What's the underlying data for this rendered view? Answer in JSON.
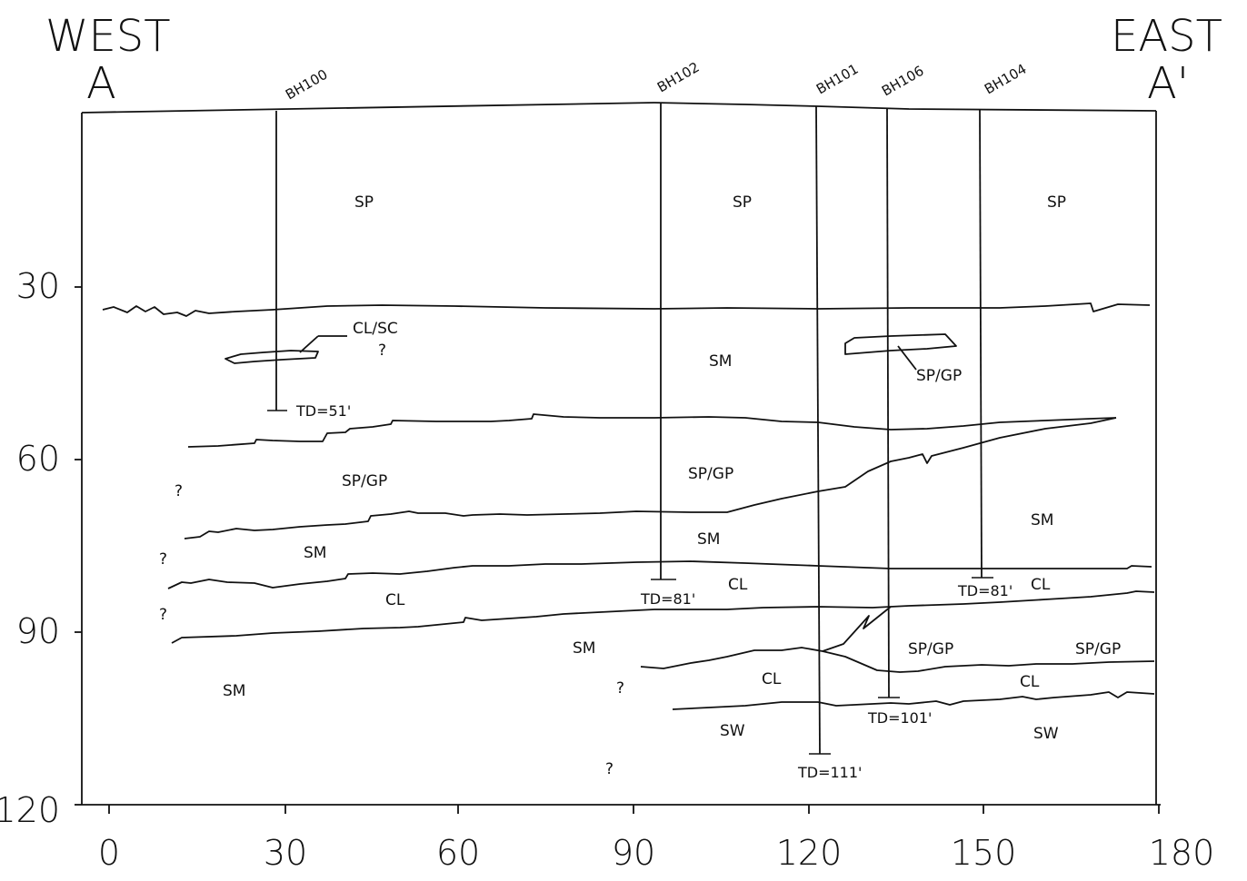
{
  "header": {
    "west": "WEST",
    "east": "EAST",
    "a_left": "A",
    "a_right": "A'"
  },
  "boreholes": [
    {
      "id": "BH100",
      "td_label": "TD=51'"
    },
    {
      "id": "BH102",
      "td_label": "TD=81'"
    },
    {
      "id": "BH101",
      "td_label": "TD=111'"
    },
    {
      "id": "BH106",
      "td_label": "TD=101'"
    },
    {
      "id": "BH104",
      "td_label": "TD=81'"
    }
  ],
  "axes": {
    "x_ticks": [
      "0",
      "30",
      "60",
      "90",
      "120",
      "150",
      "180"
    ],
    "y_ticks": [
      "30",
      "60",
      "90",
      "120"
    ]
  },
  "soil_labels": {
    "sp_1": "SP",
    "sp_2": "SP",
    "sp_3": "SP",
    "clsc": "CL/SC",
    "q_1": "?",
    "sm_1": "SM",
    "spgp_lens": "SP/GP",
    "q_2": "?",
    "spgp_1": "SP/GP",
    "spgp_2": "SP/GP",
    "sm_2": "SM",
    "q_3": "?",
    "sm_3": "SM",
    "sm_4": "SM",
    "cl_1": "CL",
    "cl_2": "CL",
    "cl_3": "CL",
    "q_4": "?",
    "sm_5": "SM",
    "spgp_3": "SP/GP",
    "spgp_4": "SP/GP",
    "sm_6": "SM",
    "cl_4": "CL",
    "cl_5": "CL",
    "q_5": "?",
    "sw_1": "SW",
    "sw_2": "SW",
    "q_6": "?"
  }
}
